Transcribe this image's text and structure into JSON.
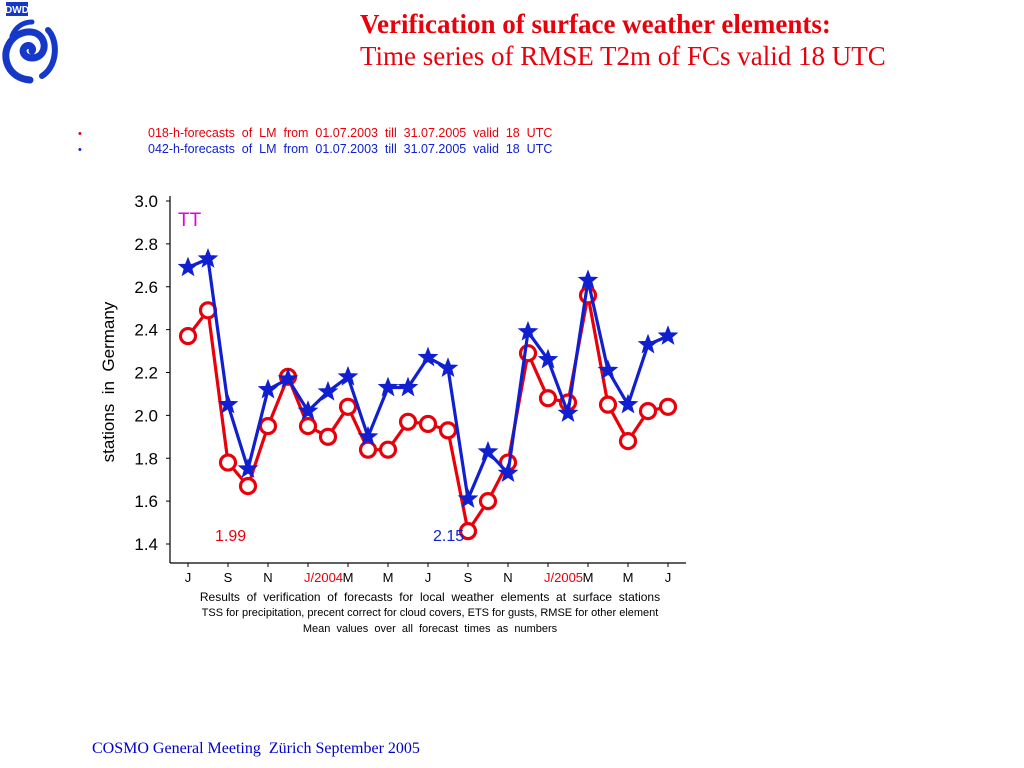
{
  "logo": {
    "text": "DWD"
  },
  "header": {
    "title_line1": "Verification of surface weather elements:",
    "title_line2": "Time series of  RMSE T2m of FCs valid 18 UTC"
  },
  "footer": {
    "text": "COSMO General Meeting  Zürich September 2005"
  },
  "colors": {
    "red": "#e8000b",
    "blue": "#1020d0",
    "magenta": "#e000e0",
    "title": "#e8000b",
    "footer": "#0000cc"
  },
  "chart_data": {
    "type": "line",
    "legend": [
      {
        "marker": "•",
        "text": "018-h-forecasts  of  LM  from  01.07.2003  till  31.07.2005  valid  18  UTC",
        "color": "#e8000b"
      },
      {
        "marker": "•",
        "text": "042-h-forecasts  of  LM  from  01.07.2003  till  31.07.2005  valid  18  UTC",
        "color": "#1020d0"
      }
    ],
    "panel_label": "TT",
    "ylabel": "stations  in  Germany",
    "ylim": [
      1.4,
      3.0
    ],
    "yticks": [
      "1.4",
      "1.6",
      "1.8",
      "2.0",
      "2.2",
      "2.4",
      "2.6",
      "2.8",
      "3.0"
    ],
    "xticks": [
      {
        "label": "J",
        "color": "#000000"
      },
      {
        "label": "S",
        "color": "#000000"
      },
      {
        "label": "N",
        "color": "#000000"
      },
      {
        "label": "J/2004",
        "color": "#e8000b"
      },
      {
        "label": "M",
        "color": "#000000"
      },
      {
        "label": "M",
        "color": "#000000"
      },
      {
        "label": "J",
        "color": "#000000"
      },
      {
        "label": "S",
        "color": "#000000"
      },
      {
        "label": "N",
        "color": "#000000"
      },
      {
        "label": "J/2005",
        "color": "#e8000b"
      },
      {
        "label": "M",
        "color": "#000000"
      },
      {
        "label": "M",
        "color": "#000000"
      },
      {
        "label": "J",
        "color": "#000000"
      }
    ],
    "series": [
      {
        "color": "#e8000b",
        "marker": "circle",
        "values": [
          2.37,
          2.49,
          1.78,
          1.67,
          1.95,
          2.18,
          1.95,
          1.9,
          2.04,
          1.84,
          1.84,
          1.97,
          1.96,
          1.93,
          1.46,
          1.6,
          1.78,
          2.29,
          2.08,
          2.06,
          2.56,
          2.05,
          1.88,
          2.02,
          2.04
        ],
        "mean_label": "1.99"
      },
      {
        "color": "#1020d0",
        "marker": "star",
        "values": [
          2.69,
          2.73,
          2.05,
          1.75,
          2.12,
          2.17,
          2.02,
          2.11,
          2.18,
          1.9,
          2.13,
          2.13,
          2.27,
          2.22,
          1.61,
          1.83,
          1.73,
          2.39,
          2.26,
          2.01,
          2.63,
          2.21,
          2.05,
          2.33,
          2.37
        ],
        "mean_label": "2.15"
      }
    ],
    "caption": [
      "Results  of  verification  of  forecasts  for  local  weather  elements  at  surface  stations",
      "TSS for precipitation, precent correct for cloud covers, ETS for gusts, RMSE for other element",
      "Mean  values  over  all  forecast  times  as  numbers"
    ]
  }
}
